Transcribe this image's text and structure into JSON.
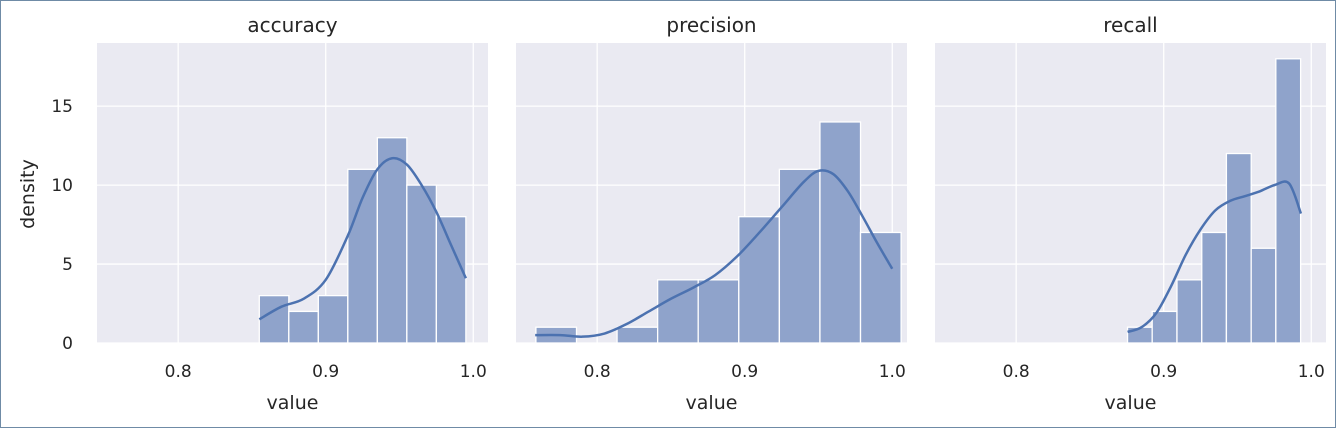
{
  "figure": {
    "ylabel": "density",
    "xlabel": "value"
  },
  "chart_data": [
    {
      "type": "bar",
      "title": "accuracy",
      "xlabel": "value",
      "ylabel": "density",
      "xlim": [
        0.745,
        1.01
      ],
      "ylim": [
        0,
        19
      ],
      "xticks": [
        "0.8",
        "0.9",
        "1.0"
      ],
      "yticks": [
        "0",
        "5",
        "10",
        "15"
      ],
      "grid": true,
      "bins": [
        {
          "x0": 0.855,
          "x1": 0.875,
          "value": 3
        },
        {
          "x0": 0.875,
          "x1": 0.895,
          "value": 2
        },
        {
          "x0": 0.895,
          "x1": 0.915,
          "value": 3
        },
        {
          "x0": 0.915,
          "x1": 0.935,
          "value": 11
        },
        {
          "x0": 0.935,
          "x1": 0.955,
          "value": 13
        },
        {
          "x0": 0.955,
          "x1": 0.975,
          "value": 10
        },
        {
          "x0": 0.975,
          "x1": 0.995,
          "value": 8
        }
      ],
      "kde": {
        "x": [
          0.855,
          0.87,
          0.885,
          0.9,
          0.915,
          0.925,
          0.935,
          0.945,
          0.955,
          0.965,
          0.975,
          0.985,
          0.995
        ],
        "y": [
          1.5,
          2.3,
          2.8,
          4.0,
          6.8,
          9.2,
          11.0,
          11.7,
          11.3,
          10.0,
          8.3,
          6.2,
          4.1
        ]
      }
    },
    {
      "type": "bar",
      "title": "precision",
      "xlabel": "value",
      "ylabel": "",
      "xlim": [
        0.745,
        1.01
      ],
      "ylim": [
        0,
        19
      ],
      "xticks": [
        "0.8",
        "0.9",
        "1.0"
      ],
      "yticks": [
        "0",
        "5",
        "10",
        "15"
      ],
      "grid": true,
      "bins": [
        {
          "x0": 0.7585,
          "x1": 0.786,
          "value": 1
        },
        {
          "x0": 0.786,
          "x1": 0.8135,
          "value": 0
        },
        {
          "x0": 0.8135,
          "x1": 0.841,
          "value": 1
        },
        {
          "x0": 0.841,
          "x1": 0.8685,
          "value": 4
        },
        {
          "x0": 0.8685,
          "x1": 0.896,
          "value": 4
        },
        {
          "x0": 0.896,
          "x1": 0.9235,
          "value": 8
        },
        {
          "x0": 0.9235,
          "x1": 0.951,
          "value": 11
        },
        {
          "x0": 0.951,
          "x1": 0.9785,
          "value": 14
        },
        {
          "x0": 0.9785,
          "x1": 1.006,
          "value": 7
        }
      ],
      "kde": {
        "x": [
          0.758,
          0.775,
          0.79,
          0.805,
          0.82,
          0.835,
          0.85,
          0.865,
          0.88,
          0.895,
          0.91,
          0.925,
          0.94,
          0.95,
          0.96,
          0.97,
          0.98,
          0.99,
          1.0
        ],
        "y": [
          0.5,
          0.5,
          0.4,
          0.6,
          1.2,
          2.0,
          2.8,
          3.5,
          4.3,
          5.5,
          7.0,
          8.6,
          10.2,
          10.9,
          10.7,
          9.6,
          8.0,
          6.3,
          4.7
        ]
      }
    },
    {
      "type": "bar",
      "title": "recall",
      "xlabel": "value",
      "ylabel": "",
      "xlim": [
        0.745,
        1.01
      ],
      "ylim": [
        0,
        19
      ],
      "xticks": [
        "0.8",
        "0.9",
        "1.0"
      ],
      "yticks": [
        "0",
        "5",
        "10",
        "15"
      ],
      "grid": true,
      "bins": [
        {
          "x0": 0.8755,
          "x1": 0.8922,
          "value": 1
        },
        {
          "x0": 0.8922,
          "x1": 0.909,
          "value": 2
        },
        {
          "x0": 0.909,
          "x1": 0.9258,
          "value": 4
        },
        {
          "x0": 0.9258,
          "x1": 0.9425,
          "value": 7
        },
        {
          "x0": 0.9425,
          "x1": 0.9593,
          "value": 12
        },
        {
          "x0": 0.9593,
          "x1": 0.976,
          "value": 6
        },
        {
          "x0": 0.976,
          "x1": 0.9928,
          "value": 18
        }
      ],
      "kde": {
        "x": [
          0.8755,
          0.885,
          0.895,
          0.905,
          0.915,
          0.925,
          0.935,
          0.945,
          0.955,
          0.965,
          0.975,
          0.985,
          0.993
        ],
        "y": [
          0.7,
          1.0,
          1.9,
          3.6,
          5.6,
          7.2,
          8.4,
          9.0,
          9.3,
          9.6,
          10.0,
          10.1,
          8.2
        ]
      }
    }
  ]
}
